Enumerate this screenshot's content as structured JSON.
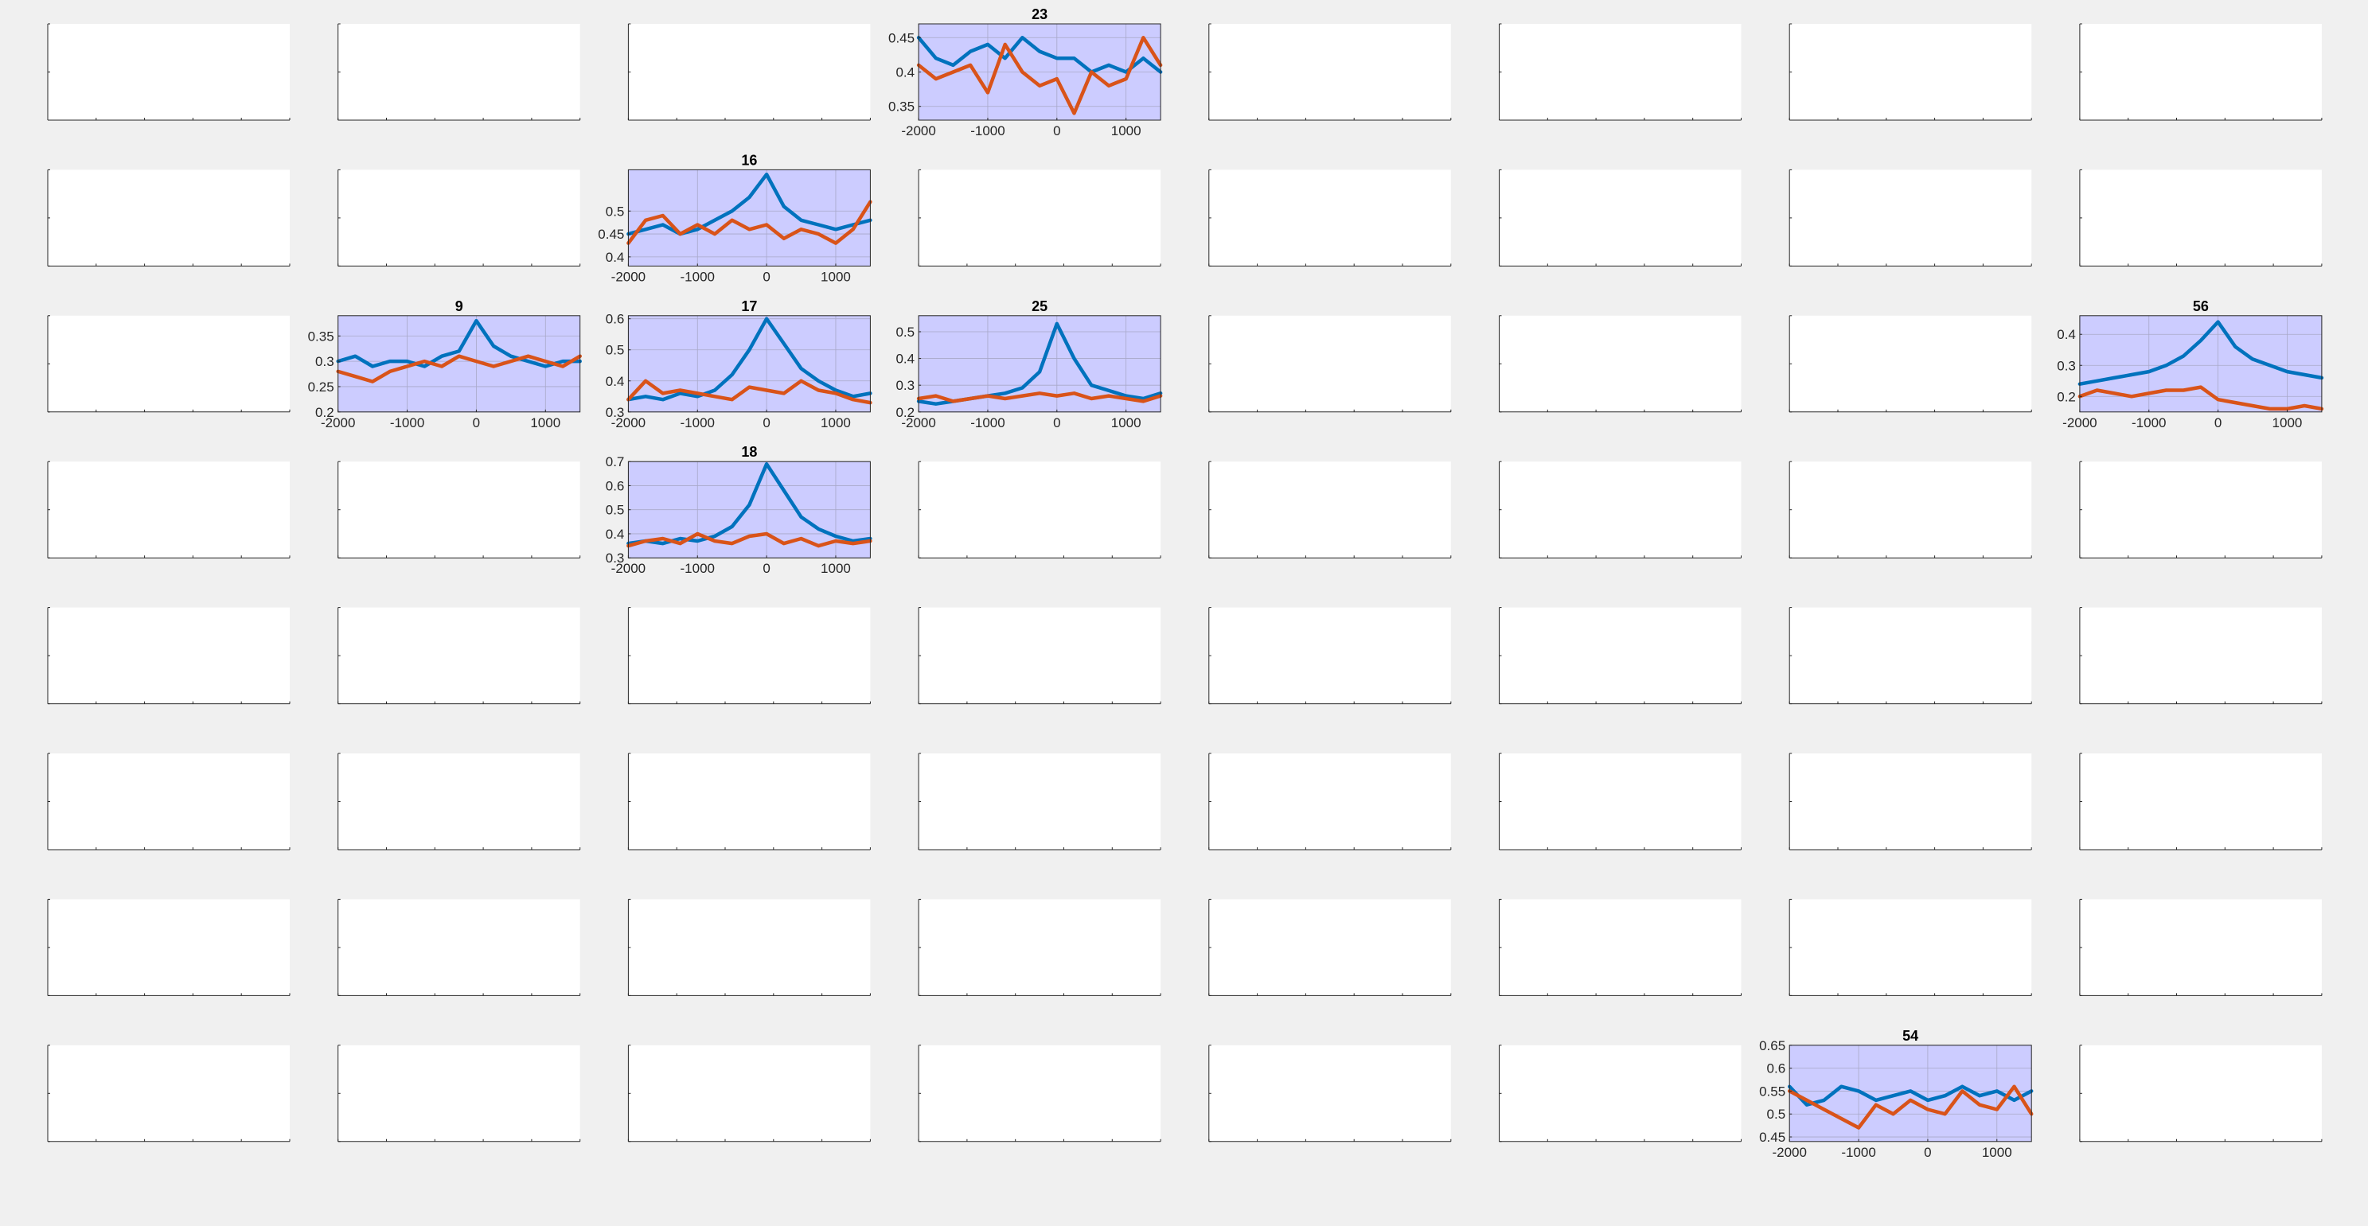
{
  "figure": {
    "background": "#f0f0f0",
    "grid_rows": 8,
    "grid_cols": 8,
    "empty_axes_background": "#ffffff",
    "highlight_axes_background": "#ccccff",
    "series_colors": [
      "#0072bd",
      "#d95319"
    ]
  },
  "chart_data": [
    {
      "type": "line",
      "title": "23",
      "row": 0,
      "col": 3,
      "xlim": [
        -2000,
        1500
      ],
      "ylim": [
        0.33,
        0.47
      ],
      "xticks": [
        -2000,
        -1000,
        0,
        1000
      ],
      "yticks": [
        0.35,
        0.4,
        0.45
      ],
      "ytick_labels": [
        "0.35",
        "0.4",
        "0.45"
      ],
      "grid": true,
      "background": "#ccccff",
      "x": [
        -2000,
        -1750,
        -1500,
        -1250,
        -1000,
        -750,
        -500,
        -250,
        0,
        250,
        500,
        750,
        1000,
        1250,
        1500
      ],
      "series": [
        {
          "color": "#0072bd",
          "values": [
            0.45,
            0.42,
            0.41,
            0.43,
            0.44,
            0.42,
            0.45,
            0.43,
            0.42,
            0.42,
            0.4,
            0.41,
            0.4,
            0.42,
            0.4
          ]
        },
        {
          "color": "#d95319",
          "values": [
            0.41,
            0.39,
            0.4,
            0.41,
            0.37,
            0.44,
            0.4,
            0.38,
            0.39,
            0.34,
            0.4,
            0.38,
            0.39,
            0.45,
            0.41
          ]
        }
      ]
    },
    {
      "type": "line",
      "title": "16",
      "row": 1,
      "col": 2,
      "xlim": [
        -2000,
        1500
      ],
      "ylim": [
        0.38,
        0.59
      ],
      "xticks": [
        -2000,
        -1000,
        0,
        1000
      ],
      "yticks": [
        0.4,
        0.45,
        0.5
      ],
      "ytick_labels": [
        "0.4",
        "0.45",
        "0.5"
      ],
      "grid": true,
      "background": "#ccccff",
      "x": [
        -2000,
        -1750,
        -1500,
        -1250,
        -1000,
        -750,
        -500,
        -250,
        0,
        250,
        500,
        750,
        1000,
        1250,
        1500
      ],
      "series": [
        {
          "color": "#0072bd",
          "values": [
            0.45,
            0.46,
            0.47,
            0.45,
            0.46,
            0.48,
            0.5,
            0.53,
            0.58,
            0.51,
            0.48,
            0.47,
            0.46,
            0.47,
            0.48
          ]
        },
        {
          "color": "#d95319",
          "values": [
            0.43,
            0.48,
            0.49,
            0.45,
            0.47,
            0.45,
            0.48,
            0.46,
            0.47,
            0.44,
            0.46,
            0.45,
            0.43,
            0.46,
            0.52
          ]
        }
      ]
    },
    {
      "type": "line",
      "title": "9",
      "row": 2,
      "col": 1,
      "xlim": [
        -2000,
        1500
      ],
      "ylim": [
        0.2,
        0.39
      ],
      "xticks": [
        -2000,
        -1000,
        0,
        1000
      ],
      "yticks": [
        0.2,
        0.25,
        0.3,
        0.35
      ],
      "ytick_labels": [
        "0.2",
        "0.25",
        "0.3",
        "0.35"
      ],
      "grid": true,
      "background": "#ccccff",
      "x": [
        -2000,
        -1750,
        -1500,
        -1250,
        -1000,
        -750,
        -500,
        -250,
        0,
        250,
        500,
        750,
        1000,
        1250,
        1500
      ],
      "series": [
        {
          "color": "#0072bd",
          "values": [
            0.3,
            0.31,
            0.29,
            0.3,
            0.3,
            0.29,
            0.31,
            0.32,
            0.38,
            0.33,
            0.31,
            0.3,
            0.29,
            0.3,
            0.3
          ]
        },
        {
          "color": "#d95319",
          "values": [
            0.28,
            0.27,
            0.26,
            0.28,
            0.29,
            0.3,
            0.29,
            0.31,
            0.3,
            0.29,
            0.3,
            0.31,
            0.3,
            0.29,
            0.31
          ]
        }
      ]
    },
    {
      "type": "line",
      "title": "17",
      "row": 2,
      "col": 2,
      "xlim": [
        -2000,
        1500
      ],
      "ylim": [
        0.3,
        0.61
      ],
      "xticks": [
        -2000,
        -1000,
        0,
        1000
      ],
      "yticks": [
        0.3,
        0.4,
        0.5,
        0.6
      ],
      "ytick_labels": [
        "0.3",
        "0.4",
        "0.5",
        "0.6"
      ],
      "grid": true,
      "background": "#ccccff",
      "x": [
        -2000,
        -1750,
        -1500,
        -1250,
        -1000,
        -750,
        -500,
        -250,
        0,
        250,
        500,
        750,
        1000,
        1250,
        1500
      ],
      "series": [
        {
          "color": "#0072bd",
          "values": [
            0.34,
            0.35,
            0.34,
            0.36,
            0.35,
            0.37,
            0.42,
            0.5,
            0.6,
            0.52,
            0.44,
            0.4,
            0.37,
            0.35,
            0.36
          ]
        },
        {
          "color": "#d95319",
          "values": [
            0.34,
            0.4,
            0.36,
            0.37,
            0.36,
            0.35,
            0.34,
            0.38,
            0.37,
            0.36,
            0.4,
            0.37,
            0.36,
            0.34,
            0.33
          ]
        }
      ]
    },
    {
      "type": "line",
      "title": "25",
      "row": 2,
      "col": 3,
      "xlim": [
        -2000,
        1500
      ],
      "ylim": [
        0.2,
        0.56
      ],
      "xticks": [
        -2000,
        -1000,
        0,
        1000
      ],
      "yticks": [
        0.2,
        0.3,
        0.4,
        0.5
      ],
      "ytick_labels": [
        "0.2",
        "0.3",
        "0.4",
        "0.5"
      ],
      "grid": true,
      "background": "#ccccff",
      "x": [
        -2000,
        -1750,
        -1500,
        -1250,
        -1000,
        -750,
        -500,
        -250,
        0,
        250,
        500,
        750,
        1000,
        1250,
        1500
      ],
      "series": [
        {
          "color": "#0072bd",
          "values": [
            0.24,
            0.23,
            0.24,
            0.25,
            0.26,
            0.27,
            0.29,
            0.35,
            0.53,
            0.4,
            0.3,
            0.28,
            0.26,
            0.25,
            0.27
          ]
        },
        {
          "color": "#d95319",
          "values": [
            0.25,
            0.26,
            0.24,
            0.25,
            0.26,
            0.25,
            0.26,
            0.27,
            0.26,
            0.27,
            0.25,
            0.26,
            0.25,
            0.24,
            0.26
          ]
        }
      ]
    },
    {
      "type": "line",
      "title": "56",
      "row": 2,
      "col": 7,
      "xlim": [
        -2000,
        1500
      ],
      "ylim": [
        0.15,
        0.46
      ],
      "xticks": [
        -2000,
        -1000,
        0,
        1000
      ],
      "yticks": [
        0.2,
        0.3,
        0.4
      ],
      "ytick_labels": [
        "0.2",
        "0.3",
        "0.4"
      ],
      "grid": true,
      "background": "#ccccff",
      "x": [
        -2000,
        -1750,
        -1500,
        -1250,
        -1000,
        -750,
        -500,
        -250,
        0,
        250,
        500,
        750,
        1000,
        1250,
        1500
      ],
      "series": [
        {
          "color": "#0072bd",
          "values": [
            0.24,
            0.25,
            0.26,
            0.27,
            0.28,
            0.3,
            0.33,
            0.38,
            0.44,
            0.36,
            0.32,
            0.3,
            0.28,
            0.27,
            0.26
          ]
        },
        {
          "color": "#d95319",
          "values": [
            0.2,
            0.22,
            0.21,
            0.2,
            0.21,
            0.22,
            0.22,
            0.23,
            0.19,
            0.18,
            0.17,
            0.16,
            0.16,
            0.17,
            0.16
          ]
        }
      ]
    },
    {
      "type": "line",
      "title": "18",
      "row": 3,
      "col": 2,
      "xlim": [
        -2000,
        1500
      ],
      "ylim": [
        0.3,
        0.7
      ],
      "xticks": [
        -2000,
        -1000,
        0,
        1000
      ],
      "yticks": [
        0.3,
        0.4,
        0.5,
        0.6,
        0.7
      ],
      "ytick_labels": [
        "0.3",
        "0.4",
        "0.5",
        "0.6",
        "0.7"
      ],
      "grid": true,
      "background": "#ccccff",
      "x": [
        -2000,
        -1750,
        -1500,
        -1250,
        -1000,
        -750,
        -500,
        -250,
        0,
        250,
        500,
        750,
        1000,
        1250,
        1500
      ],
      "series": [
        {
          "color": "#0072bd",
          "values": [
            0.36,
            0.37,
            0.36,
            0.38,
            0.37,
            0.39,
            0.43,
            0.52,
            0.69,
            0.58,
            0.47,
            0.42,
            0.39,
            0.37,
            0.38
          ]
        },
        {
          "color": "#d95319",
          "values": [
            0.35,
            0.37,
            0.38,
            0.36,
            0.4,
            0.37,
            0.36,
            0.39,
            0.4,
            0.36,
            0.38,
            0.35,
            0.37,
            0.36,
            0.37
          ]
        }
      ]
    },
    {
      "type": "line",
      "title": "54",
      "row": 7,
      "col": 6,
      "xlim": [
        -2000,
        1500
      ],
      "ylim": [
        0.44,
        0.65
      ],
      "xticks": [
        -2000,
        -1000,
        0,
        1000
      ],
      "yticks": [
        0.45,
        0.5,
        0.55,
        0.6,
        0.65
      ],
      "ytick_labels": [
        "0.45",
        "0.5",
        "0.55",
        "0.6",
        "0.65"
      ],
      "grid": true,
      "background": "#ccccff",
      "x": [
        -2000,
        -1750,
        -1500,
        -1250,
        -1000,
        -750,
        -500,
        -250,
        0,
        250,
        500,
        750,
        1000,
        1250,
        1500
      ],
      "series": [
        {
          "color": "#0072bd",
          "values": [
            0.56,
            0.52,
            0.53,
            0.56,
            0.55,
            0.53,
            0.54,
            0.55,
            0.53,
            0.54,
            0.56,
            0.54,
            0.55,
            0.53,
            0.55
          ]
        },
        {
          "color": "#d95319",
          "values": [
            0.55,
            0.53,
            0.51,
            0.49,
            0.47,
            0.52,
            0.5,
            0.53,
            0.51,
            0.5,
            0.55,
            0.52,
            0.51,
            0.56,
            0.5
          ]
        }
      ]
    }
  ]
}
